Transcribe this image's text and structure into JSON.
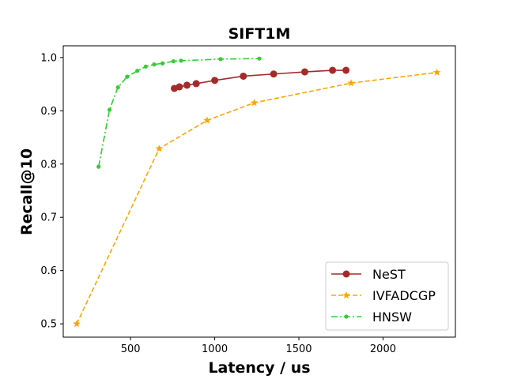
{
  "chart_data": {
    "type": "line",
    "title": "SIFT1M",
    "xlabel": "Latency / us",
    "ylabel": "Recall@10",
    "xlim": [
      100,
      2430
    ],
    "ylim": [
      0.475,
      1.022
    ],
    "xticks": [
      500,
      1000,
      1500,
      2000
    ],
    "yticks": [
      0.5,
      0.6,
      0.7,
      0.8,
      0.9,
      1.0
    ],
    "xtick_labels": [
      "500",
      "1000",
      "1500",
      "2000"
    ],
    "ytick_labels": [
      "0.5",
      "0.6",
      "0.7",
      "0.8",
      "0.9",
      "1.0"
    ],
    "grid": false,
    "legend_position": "lower-right",
    "series": [
      {
        "name": "NeST",
        "color": "#a52a2a",
        "line_style": "solid",
        "marker": "circle",
        "x": [
          760,
          790,
          835,
          890,
          1000,
          1170,
          1350,
          1535,
          1700,
          1780
        ],
        "y": [
          0.942,
          0.945,
          0.948,
          0.951,
          0.957,
          0.965,
          0.969,
          0.973,
          0.976,
          0.976
        ]
      },
      {
        "name": "IVFADCGP",
        "color": "#ffa500",
        "line_style": "dashed",
        "marker": "star",
        "x": [
          180,
          670,
          955,
          1235,
          1810,
          2320
        ],
        "y": [
          0.5,
          0.829,
          0.882,
          0.915,
          0.952,
          0.972
        ]
      },
      {
        "name": "HNSW",
        "color": "#32cd32",
        "line_style": "dashdot",
        "marker": "point",
        "x": [
          310,
          375,
          425,
          480,
          540,
          590,
          640,
          690,
          755,
          800,
          1035,
          1265
        ],
        "y": [
          0.795,
          0.902,
          0.944,
          0.964,
          0.975,
          0.983,
          0.987,
          0.989,
          0.993,
          0.994,
          0.997,
          0.998
        ]
      }
    ]
  }
}
